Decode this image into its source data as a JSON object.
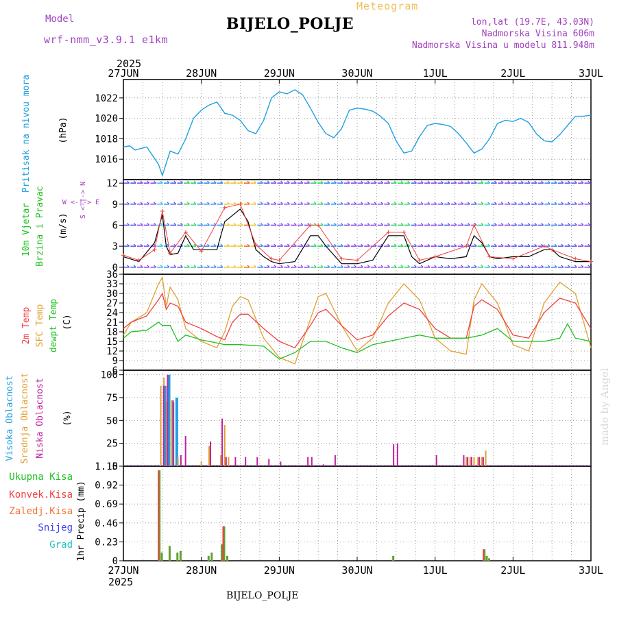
{
  "header": {
    "model_label": "Model",
    "model_name": "wrf-nmm_v3.9.1  e1km",
    "station": "BIJELO_POLJE",
    "meteogram": "Meteogram",
    "lonlat": "lon,lat (19.7E, 43.03N)",
    "altitude": "Nadmorska Visina 606m",
    "model_altitude": "Nadmorska Visina u modelu 811.948m",
    "watermark": "made by Angel",
    "bottom_station": "BIJELO_POLJE"
  },
  "colors": {
    "pressure": "#1ea0e0",
    "t2m": "#f04040",
    "sfc": "#e0a030",
    "dewpt": "#20c020",
    "wind_label": "#20c020",
    "pressure_label": "#20a0e0",
    "purple": "#a040c0",
    "total_rain": "#20c020",
    "conv_rain": "#f04040",
    "frz_rain": "#f07030",
    "snow": "#4040f0",
    "grad": "#20c0c0",
    "high_cloud": "#20a0e0",
    "mid_cloud": "#e0a030",
    "low_cloud": "#c020a0"
  },
  "time_axis": {
    "year": "2025",
    "days": [
      "27JUN",
      "28JUN",
      "29JUN",
      "30JUN",
      "1JUL",
      "2JUL",
      "3JUL"
    ]
  },
  "chart_data": [
    {
      "type": "line",
      "name": "pressure",
      "ylabel_left": "Pritisak na nivou mora",
      "ylabel_unit": "(hPa)",
      "ylim": [
        1014,
        1023.8
      ],
      "yticks": [
        1016,
        1018,
        1020,
        1022
      ],
      "x_range_days": [
        0,
        6
      ],
      "series": [
        {
          "x": [
            0,
            0.08,
            0.15,
            0.3,
            0.45,
            0.5,
            0.6,
            0.7,
            0.8,
            0.9,
            1.0,
            1.1,
            1.2,
            1.3,
            1.4,
            1.5,
            1.6,
            1.7,
            1.8,
            1.9,
            2.0,
            2.1,
            2.2,
            2.3,
            2.4,
            2.5,
            2.6,
            2.7,
            2.8,
            2.9,
            3.0,
            3.1,
            3.2,
            3.3,
            3.4,
            3.5,
            3.6,
            3.7,
            3.8,
            3.9,
            4.0,
            4.1,
            4.2,
            4.3,
            4.4,
            4.5,
            4.6,
            4.7,
            4.8,
            4.9,
            5.0,
            5.1,
            5.2,
            5.3,
            5.4,
            5.5,
            5.6,
            5.7,
            5.8,
            5.9,
            6.0
          ],
          "values": [
            1017.2,
            1017.3,
            1016.9,
            1017.2,
            1015.5,
            1014.4,
            1016.8,
            1016.5,
            1018,
            1020,
            1020.8,
            1021.3,
            1021.6,
            1020.5,
            1020.3,
            1019.8,
            1018.8,
            1018.5,
            1019.8,
            1022,
            1022.6,
            1022.4,
            1022.8,
            1022.3,
            1021,
            1019.6,
            1018.5,
            1018.1,
            1019,
            1020.8,
            1021,
            1020.9,
            1020.7,
            1020.2,
            1019.5,
            1017.8,
            1016.6,
            1016.8,
            1018.2,
            1019.3,
            1019.5,
            1019.4,
            1019.2,
            1018.5,
            1017.6,
            1016.6,
            1017,
            1018,
            1019.5,
            1019.8,
            1019.7,
            1020,
            1019.6,
            1018.5,
            1017.8,
            1017.7,
            1018.4,
            1019.3,
            1020.2,
            1020.2,
            1020.3
          ]
        }
      ]
    },
    {
      "type": "line",
      "name": "wind",
      "ylabel_left1": "10m Vjetar",
      "ylabel_left2": "Brzina i Pravac",
      "ylabel_unit": "(m/s)",
      "compass": "W <-|-> E",
      "compass_ns": "S <-|-> N",
      "ylim": [
        -1,
        12.5
      ],
      "yticks": [
        0,
        3,
        6,
        9,
        12
      ],
      "series": [
        {
          "name": "speed",
          "x": [
            0,
            0.2,
            0.4,
            0.5,
            0.55,
            0.6,
            0.7,
            0.8,
            0.9,
            1.0,
            1.2,
            1.3,
            1.5,
            1.6,
            1.7,
            1.8,
            1.9,
            2.0,
            2.2,
            2.4,
            2.5,
            2.6,
            2.8,
            3.0,
            3.2,
            3.4,
            3.6,
            3.7,
            3.8,
            4.0,
            4.2,
            4.4,
            4.5,
            4.6,
            4.7,
            4.8,
            5.0,
            5.2,
            5.4,
            5.5,
            5.6,
            5.8,
            6.0
          ],
          "values": [
            1.5,
            0.8,
            3.5,
            7.5,
            3,
            1.8,
            2,
            4.5,
            2.5,
            2.5,
            2.5,
            6.5,
            8.3,
            6.5,
            2.5,
            1.5,
            0.8,
            0.5,
            0.8,
            4.5,
            4.5,
            3,
            0.5,
            0.5,
            1,
            4.5,
            4.5,
            1.5,
            0.5,
            1.5,
            1.2,
            1.5,
            4.5,
            3.5,
            1.5,
            1.2,
            1.5,
            1.5,
            2.5,
            2.5,
            1.5,
            0.8,
            0.8
          ]
        },
        {
          "name": "gust",
          "x": [
            0,
            0.2,
            0.4,
            0.5,
            0.6,
            0.8,
            1.0,
            1.3,
            1.5,
            1.7,
            1.9,
            2.0,
            2.4,
            2.5,
            2.8,
            3.0,
            3.4,
            3.6,
            3.8,
            4.0,
            4.4,
            4.5,
            4.7,
            5.0,
            5.4,
            5.5,
            5.8,
            6.0
          ],
          "values": [
            1.7,
            1,
            2.5,
            8,
            2,
            5,
            2.3,
            8.5,
            9,
            3.2,
            1.2,
            1,
            6,
            6,
            1.2,
            1,
            5,
            5,
            1,
            1.5,
            3,
            6,
            1.5,
            1.2,
            3,
            2.5,
            1.2,
            0.8
          ]
        }
      ]
    },
    {
      "type": "line",
      "name": "temperature",
      "ylabel_t2m": "2m Temp",
      "ylabel_sfc": "SFC Temp",
      "ylabel_dew": "dewpt Temp",
      "ylabel_unit": "(C)",
      "ylim": [
        6,
        36
      ],
      "yticks": [
        6,
        9,
        12,
        15,
        18,
        21,
        24,
        27,
        30,
        33,
        36
      ],
      "series": [
        {
          "name": "2m Temp",
          "x": [
            0,
            0.1,
            0.3,
            0.45,
            0.5,
            0.55,
            0.6,
            0.7,
            0.8,
            1.0,
            1.2,
            1.3,
            1.4,
            1.5,
            1.6,
            1.8,
            2.0,
            2.2,
            2.4,
            2.5,
            2.6,
            2.8,
            3.0,
            3.2,
            3.4,
            3.6,
            3.8,
            4.0,
            4.2,
            4.4,
            4.5,
            4.6,
            4.8,
            5.0,
            5.2,
            5.4,
            5.6,
            5.8,
            6.0
          ],
          "values": [
            19,
            21,
            23,
            28,
            30,
            25,
            27,
            26,
            21,
            19,
            16.5,
            15.5,
            21,
            23.5,
            23.5,
            19,
            15,
            13,
            20,
            24,
            25,
            20,
            15.5,
            17,
            23,
            27,
            25,
            19,
            16,
            16,
            26,
            28,
            25,
            17,
            16,
            24,
            28.5,
            27,
            19
          ]
        },
        {
          "name": "SFC Temp",
          "x": [
            0,
            0.1,
            0.3,
            0.45,
            0.5,
            0.55,
            0.6,
            0.7,
            0.8,
            1.0,
            1.2,
            1.3,
            1.4,
            1.5,
            1.6,
            1.8,
            2.0,
            2.2,
            2.4,
            2.5,
            2.6,
            2.8,
            3.0,
            3.2,
            3.4,
            3.6,
            3.8,
            4.0,
            4.2,
            4.4,
            4.5,
            4.6,
            4.8,
            5.0,
            5.2,
            5.4,
            5.6,
            5.8,
            6.0
          ],
          "values": [
            17,
            21,
            24,
            33,
            35,
            26,
            32,
            28,
            19,
            15,
            13,
            18,
            26,
            29,
            28,
            16,
            10,
            8,
            22,
            29,
            30,
            20,
            12,
            16,
            27,
            33,
            28,
            16,
            12,
            11,
            28,
            33,
            27,
            14,
            12,
            27,
            33.5,
            30,
            13
          ]
        },
        {
          "name": "dewpt Temp",
          "x": [
            0,
            0.1,
            0.3,
            0.45,
            0.5,
            0.6,
            0.7,
            0.8,
            1.0,
            1.2,
            1.3,
            1.5,
            1.8,
            2.0,
            2.2,
            2.4,
            2.6,
            2.8,
            3.0,
            3.2,
            3.4,
            3.6,
            3.8,
            4.0,
            4.2,
            4.4,
            4.6,
            4.8,
            5.0,
            5.2,
            5.4,
            5.6,
            5.7,
            5.8,
            6.0
          ],
          "values": [
            16,
            18,
            18.5,
            21,
            20,
            20,
            15,
            17,
            15.5,
            14.5,
            14,
            14,
            13.5,
            9.5,
            11.5,
            15,
            15,
            13,
            11.5,
            14,
            15,
            16,
            17,
            16,
            16,
            16,
            17,
            19,
            15,
            15,
            15,
            16,
            20.5,
            16,
            15
          ]
        }
      ]
    },
    {
      "type": "bar",
      "name": "cloud",
      "ylabel_high": "Visoka Oblacnost",
      "ylabel_mid": "Srednja Oblacnost",
      "ylabel_low": "Niska Oblacnost",
      "ylabel_unit": "(%)",
      "ylim": [
        0,
        105
      ],
      "yticks": [
        0,
        25,
        50,
        75,
        100
      ],
      "series": [
        {
          "name": "high",
          "x": [
            0.5,
            0.55,
            0.6,
            0.65
          ],
          "values": [
            88,
            100,
            70,
            75
          ]
        },
        {
          "name": "mid",
          "x": [
            0.48,
            0.52,
            0.56,
            0.62,
            0.7,
            1.0,
            1.1,
            1.25,
            1.3,
            1.35,
            4.4,
            4.45,
            4.5,
            4.55,
            4.6,
            4.65
          ],
          "values": [
            88,
            97,
            70,
            72,
            10,
            5,
            22,
            12,
            45,
            10,
            10,
            10,
            10,
            10,
            10,
            17
          ]
        },
        {
          "name": "low",
          "x": [
            0.5,
            0.55,
            0.62,
            0.72,
            0.78,
            1.1,
            1.25,
            1.3,
            1.42,
            1.55,
            1.7,
            1.85,
            2.0,
            2.35,
            2.4,
            2.55,
            2.7,
            3.45,
            3.5,
            4.0,
            4.35,
            4.4,
            4.45,
            4.55,
            4.6
          ],
          "values": [
            88,
            100,
            72,
            12,
            33,
            27,
            52,
            10,
            10,
            10,
            10,
            8,
            5,
            10,
            10,
            2,
            12,
            24,
            25,
            12,
            12,
            10,
            10,
            10,
            10
          ]
        }
      ]
    },
    {
      "type": "bar",
      "name": "precip",
      "ylabel_left": "1hr Precip (mm)",
      "legend": [
        "Ukupna Kisa",
        "Konvek.Kisa",
        "Zaledj.Kisa",
        "Snijeg",
        "Grad"
      ],
      "ylim": [
        0,
        1.15
      ],
      "yticks": [
        0,
        0.23,
        0.46,
        0.69,
        0.92,
        1.15
      ],
      "series": [
        {
          "name": "Ukupna Kisa",
          "x": [
            0.45,
            0.48,
            0.58,
            0.68,
            0.72,
            1.08,
            1.12,
            1.25,
            1.28,
            1.32,
            3.45,
            4.62,
            4.65,
            4.68
          ],
          "values": [
            1.1,
            0.1,
            0.18,
            0.1,
            0.12,
            0.06,
            0.1,
            0.2,
            0.42,
            0.06,
            0.06,
            0.14,
            0.06,
            0.03
          ]
        },
        {
          "name": "Konvek.Kisa",
          "x": [
            0.45,
            1.28,
            4.62
          ],
          "values": [
            1.1,
            0.42,
            0.14
          ]
        }
      ]
    }
  ]
}
